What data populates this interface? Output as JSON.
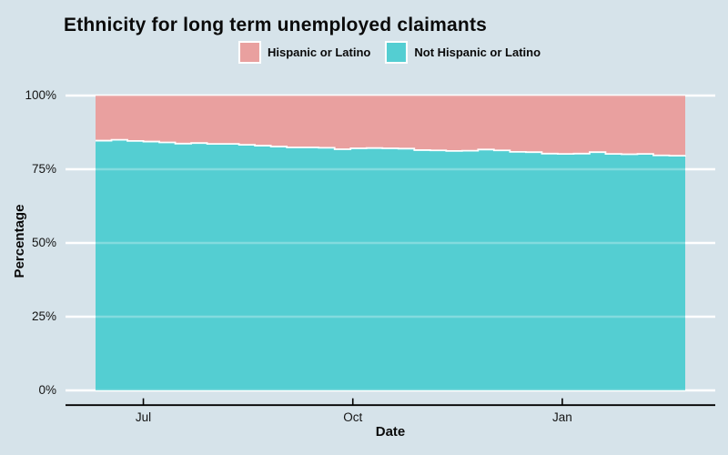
{
  "title": "Ethnicity for long term unemployed claimants",
  "legend": [
    {
      "label": "Hispanic or Latino",
      "color": "#e9a09f"
    },
    {
      "label": "Not Hispanic or Latino",
      "color": "#54ced2"
    }
  ],
  "colors": {
    "background": "#d6e3ea",
    "gridline": "#ffffff",
    "boundary_line": "#ffffff",
    "axis_line": "#000000"
  },
  "chart_data": {
    "type": "area",
    "stacked": true,
    "interpolation": "step",
    "title": "Ethnicity for long term unemployed claimants",
    "xlabel": "Date",
    "ylabel": "Percentage",
    "ylim": [
      0,
      100
    ],
    "grid": "horizontal-major",
    "legend_position": "top-center",
    "x_unit": "days from first weekly observation (mid-June), weekly cadence",
    "x_days": [
      0,
      7,
      14,
      21,
      28,
      35,
      42,
      49,
      56,
      63,
      70,
      77,
      84,
      91,
      98,
      105,
      112,
      119,
      126,
      133,
      140,
      147,
      154,
      161,
      168,
      175,
      182,
      189,
      196,
      203,
      210,
      217,
      224,
      231,
      238,
      245,
      252,
      259
    ],
    "series": [
      {
        "name": "Hispanic or Latino",
        "color": "#e9a09f",
        "position": "top",
        "values": [
          15.3,
          15.0,
          15.4,
          15.6,
          15.9,
          16.3,
          16.1,
          16.4,
          16.4,
          16.7,
          17.0,
          17.3,
          17.6,
          17.6,
          17.7,
          18.2,
          17.9,
          17.8,
          17.9,
          18.0,
          18.5,
          18.6,
          18.8,
          18.7,
          18.3,
          18.6,
          19.1,
          19.2,
          19.7,
          19.8,
          19.7,
          19.2,
          19.8,
          19.9,
          19.8,
          20.3,
          20.4,
          20.3
        ]
      },
      {
        "name": "Not Hispanic or Latino",
        "color": "#54ced2",
        "position": "bottom",
        "values": [
          84.7,
          85.0,
          84.6,
          84.4,
          84.1,
          83.7,
          83.9,
          83.6,
          83.6,
          83.3,
          83.0,
          82.7,
          82.4,
          82.4,
          82.3,
          81.8,
          82.1,
          82.2,
          82.1,
          82.0,
          81.5,
          81.4,
          81.2,
          81.3,
          81.7,
          81.4,
          80.9,
          80.8,
          80.3,
          80.2,
          80.3,
          80.8,
          80.2,
          80.1,
          80.2,
          79.7,
          79.6,
          79.7
        ]
      }
    ],
    "y_ticks": [
      {
        "value": 100,
        "label": "100%"
      },
      {
        "value": 75,
        "label": "75%"
      },
      {
        "value": 50,
        "label": "50%"
      },
      {
        "value": 25,
        "label": "25%"
      },
      {
        "value": 0,
        "label": "0%"
      }
    ],
    "x_ticks": [
      {
        "day": 21,
        "label": "Jul"
      },
      {
        "day": 113,
        "label": "Oct"
      },
      {
        "day": 205,
        "label": "Jan"
      }
    ]
  }
}
